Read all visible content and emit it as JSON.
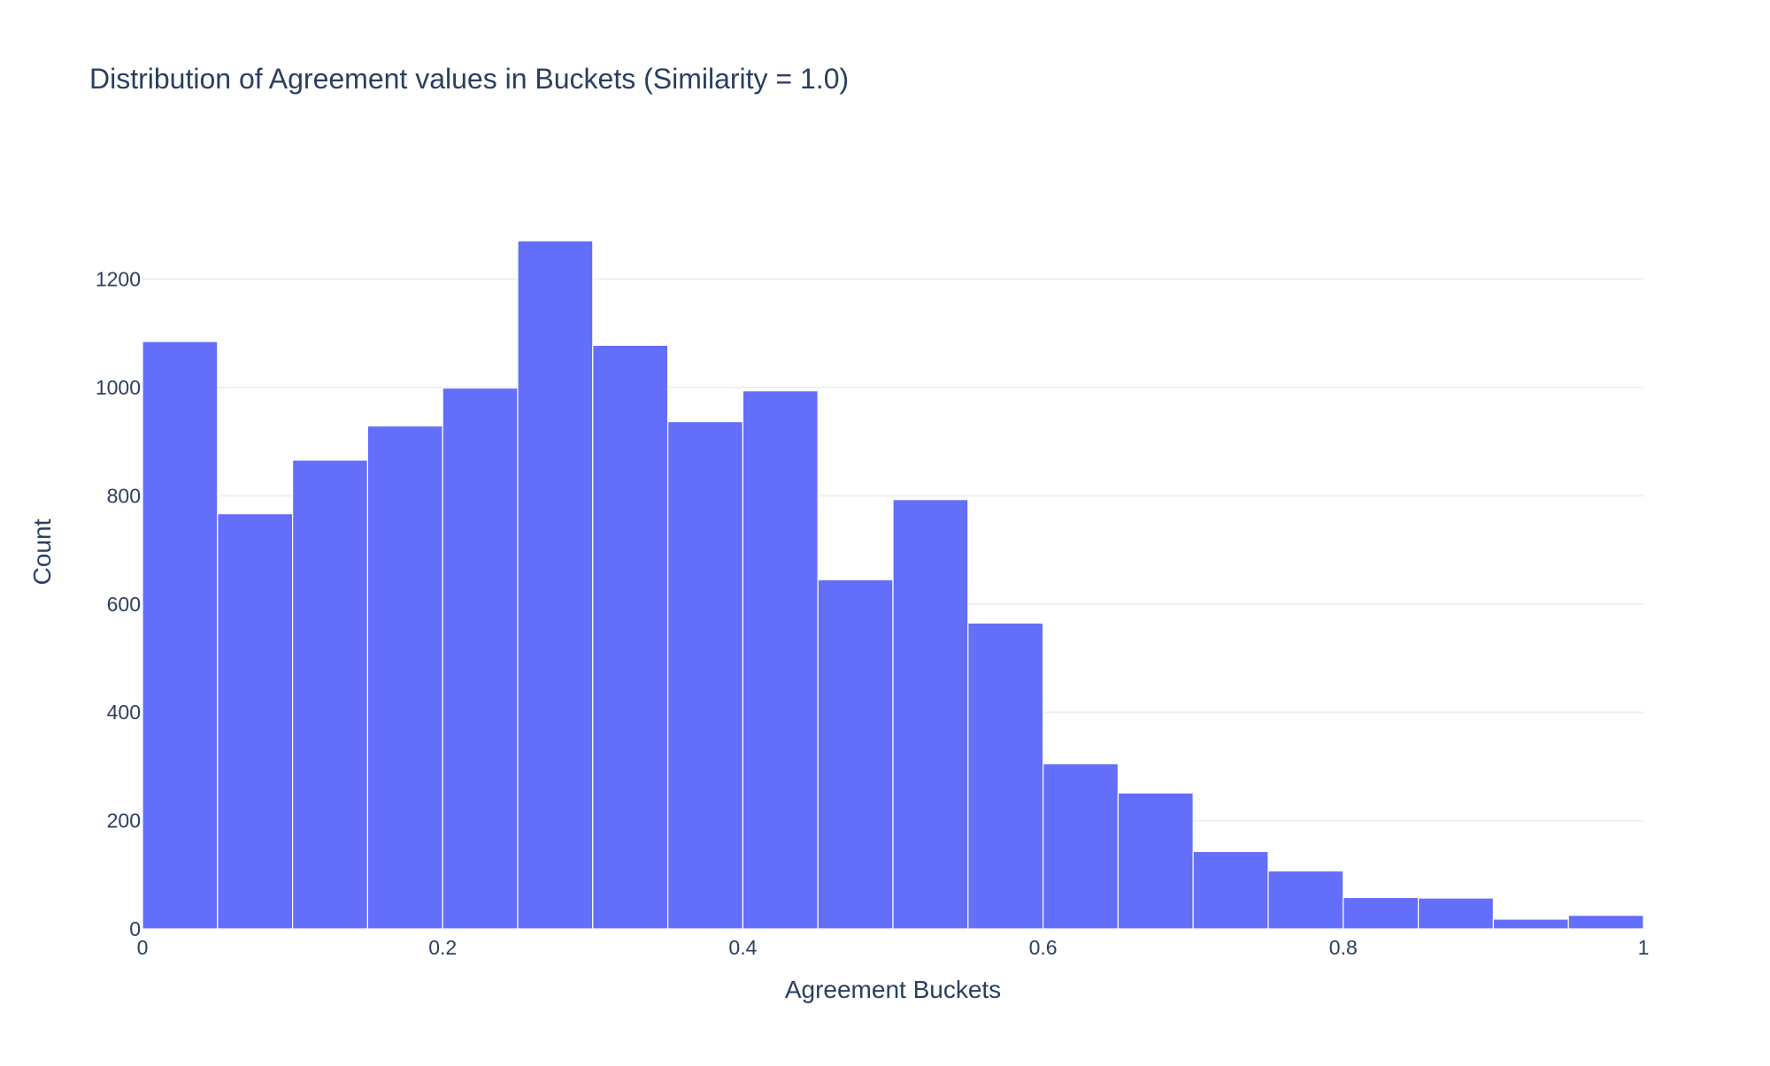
{
  "chart_data": {
    "type": "bar",
    "title": "Distribution of Agreement values in Buckets (Similarity = 1.0)",
    "xlabel": "Agreement Buckets",
    "ylabel": "Count",
    "xlim": [
      0,
      1
    ],
    "ylim": [
      0,
      1340
    ],
    "x_ticks": [
      0,
      0.2,
      0.4,
      0.6,
      0.8,
      1
    ],
    "x_tick_labels": [
      "0",
      "0.2",
      "0.4",
      "0.6",
      "0.8",
      "1"
    ],
    "y_ticks": [
      0,
      200,
      400,
      600,
      800,
      1000,
      1200
    ],
    "y_tick_labels": [
      "0",
      "200",
      "400",
      "600",
      "800",
      "1000",
      "1200"
    ],
    "grid": true,
    "bin_width": 0.05,
    "bins": [
      {
        "start": 0.0,
        "end": 0.05,
        "count": 1085
      },
      {
        "start": 0.05,
        "end": 0.1,
        "count": 767
      },
      {
        "start": 0.1,
        "end": 0.15,
        "count": 866
      },
      {
        "start": 0.15,
        "end": 0.2,
        "count": 929
      },
      {
        "start": 0.2,
        "end": 0.25,
        "count": 999
      },
      {
        "start": 0.25,
        "end": 0.3,
        "count": 1271
      },
      {
        "start": 0.3,
        "end": 0.35,
        "count": 1078
      },
      {
        "start": 0.35,
        "end": 0.4,
        "count": 937
      },
      {
        "start": 0.4,
        "end": 0.45,
        "count": 994
      },
      {
        "start": 0.45,
        "end": 0.5,
        "count": 645
      },
      {
        "start": 0.5,
        "end": 0.55,
        "count": 793
      },
      {
        "start": 0.55,
        "end": 0.6,
        "count": 565
      },
      {
        "start": 0.6,
        "end": 0.65,
        "count": 305
      },
      {
        "start": 0.65,
        "end": 0.7,
        "count": 251
      },
      {
        "start": 0.7,
        "end": 0.75,
        "count": 143
      },
      {
        "start": 0.75,
        "end": 0.8,
        "count": 107
      },
      {
        "start": 0.8,
        "end": 0.85,
        "count": 58
      },
      {
        "start": 0.85,
        "end": 0.9,
        "count": 57
      },
      {
        "start": 0.9,
        "end": 0.95,
        "count": 18
      },
      {
        "start": 0.95,
        "end": 1.0,
        "count": 25
      }
    ],
    "colors": {
      "bar": "#636efa",
      "grid": "#ebf0f8",
      "text": "#2a3f5f",
      "background": "#ffffff"
    }
  }
}
